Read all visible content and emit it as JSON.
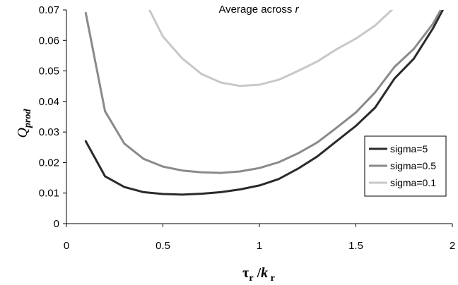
{
  "chart_data": {
    "type": "line",
    "title_prefix": "Average across ",
    "title_var": "r",
    "ylabel_main": "Q",
    "ylabel_sub": "prod",
    "xlabel_tau": "τ",
    "xlabel_tau_sub": "r",
    "xlabel_sep": " /",
    "xlabel_k": "k",
    "xlabel_k_sub": " r",
    "xlim": [
      0,
      2
    ],
    "ylim": [
      0,
      0.07
    ],
    "xticks": [
      0,
      0.5,
      1,
      1.5,
      2
    ],
    "xtick_labels": [
      "0",
      "0.5",
      "1",
      "1.5",
      "2"
    ],
    "yticks": [
      0,
      0.01,
      0.02,
      0.03,
      0.04,
      0.05,
      0.06,
      0.07
    ],
    "ytick_labels": [
      "0",
      "0.01",
      "0.02",
      "0.03",
      "0.04",
      "0.05",
      "0.06",
      "0.07"
    ],
    "grid": false,
    "legend_position": "right",
    "series": [
      {
        "name": "sigma=5",
        "color": "#2a2a2a",
        "x": [
          0.1,
          0.2,
          0.3,
          0.4,
          0.5,
          0.6,
          0.7,
          0.8,
          0.9,
          1.0,
          1.1,
          1.2,
          1.3,
          1.4,
          1.5,
          1.6,
          1.7,
          1.8,
          1.9,
          1.95
        ],
        "y": [
          0.027,
          0.0155,
          0.012,
          0.0103,
          0.0097,
          0.0095,
          0.0098,
          0.0103,
          0.0112,
          0.0125,
          0.0146,
          0.018,
          0.022,
          0.027,
          0.032,
          0.038,
          0.0475,
          0.054,
          0.064,
          0.07
        ]
      },
      {
        "name": "sigma=0.5",
        "color": "#8a8a8a",
        "x": [
          0.1,
          0.2,
          0.3,
          0.4,
          0.5,
          0.6,
          0.7,
          0.8,
          0.9,
          1.0,
          1.1,
          1.2,
          1.3,
          1.4,
          1.5,
          1.6,
          1.7,
          1.8,
          1.9,
          1.94
        ],
        "y": [
          0.069,
          0.0368,
          0.0262,
          0.0212,
          0.0187,
          0.0174,
          0.0168,
          0.0166,
          0.0171,
          0.0182,
          0.0201,
          0.023,
          0.0266,
          0.0314,
          0.0364,
          0.043,
          0.0513,
          0.0572,
          0.0655,
          0.07
        ]
      },
      {
        "name": "sigma=0.1",
        "color": "#c8c8c8",
        "x": [
          0.43,
          0.5,
          0.6,
          0.7,
          0.8,
          0.9,
          1.0,
          1.1,
          1.2,
          1.3,
          1.4,
          1.5,
          1.6,
          1.7,
          1.78
        ],
        "y": [
          0.07,
          0.0613,
          0.0541,
          0.049,
          0.0462,
          0.0451,
          0.0455,
          0.0471,
          0.05,
          0.0531,
          0.0571,
          0.0606,
          0.0649,
          0.0708,
          0.0765
        ]
      }
    ]
  }
}
